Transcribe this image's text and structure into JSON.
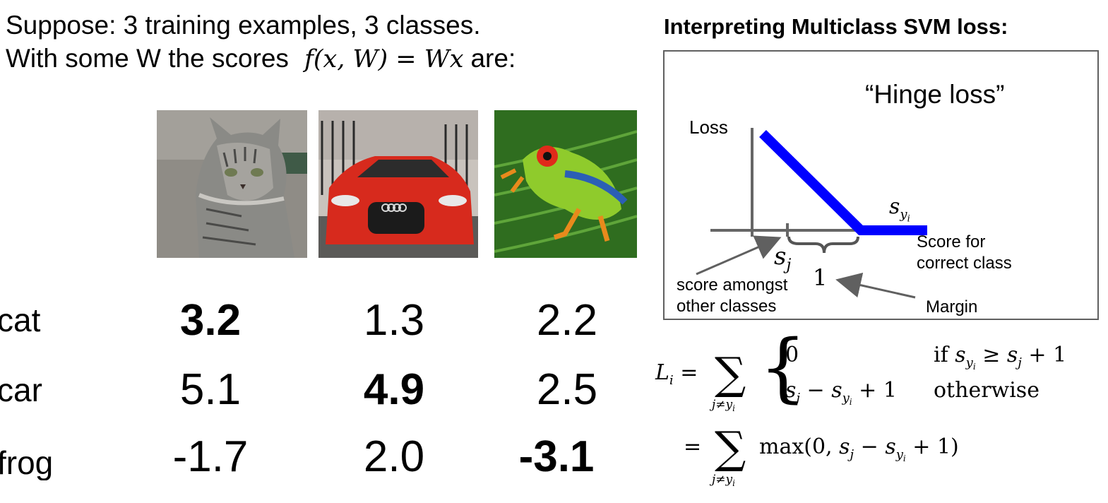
{
  "intro": {
    "line1": "Suppose: 3 training examples, 3 classes.",
    "line2_prefix": "With some W the scores",
    "formula": "f(x,W) = Wx",
    "line2_suffix": "are:"
  },
  "images": [
    {
      "icon": "cat-photo"
    },
    {
      "icon": "car-photo"
    },
    {
      "icon": "frog-photo"
    }
  ],
  "rows": [
    {
      "label": "cat",
      "scores": [
        "3.2",
        "1.3",
        "2.2"
      ]
    },
    {
      "label": "car",
      "scores": [
        "5.1",
        "4.9",
        "2.5"
      ]
    },
    {
      "label": "frog",
      "scores": [
        "-1.7",
        "2.0",
        "-3.1"
      ]
    }
  ],
  "panel": {
    "title": "Interpreting Multiclass SVM loss:",
    "hinge_title": "“Hinge loss”",
    "loss_label": "Loss",
    "s_yi_label": "s_yi",
    "s_j_label": "s_j",
    "one_label": "1",
    "score_correct_1": "Score for",
    "score_correct_2": "correct class",
    "score_other_1": "score amongst",
    "score_other_2": "other classes",
    "margin_label": "Margin",
    "line_color": "#0000ff",
    "axis_color": "#666666"
  },
  "formula": {
    "lhs": "L_i =",
    "sum_sub": "j≠y_i",
    "case1_value": "0",
    "case1_cond": "if s_yi ≥ s_j + 1",
    "case2_value": "s_j − s_yi + 1",
    "case2_cond": "otherwise",
    "line2": "= Σ max(0, s_j − s_yi + 1)",
    "max_text": "max(0, s_j − s_yi + 1)"
  }
}
